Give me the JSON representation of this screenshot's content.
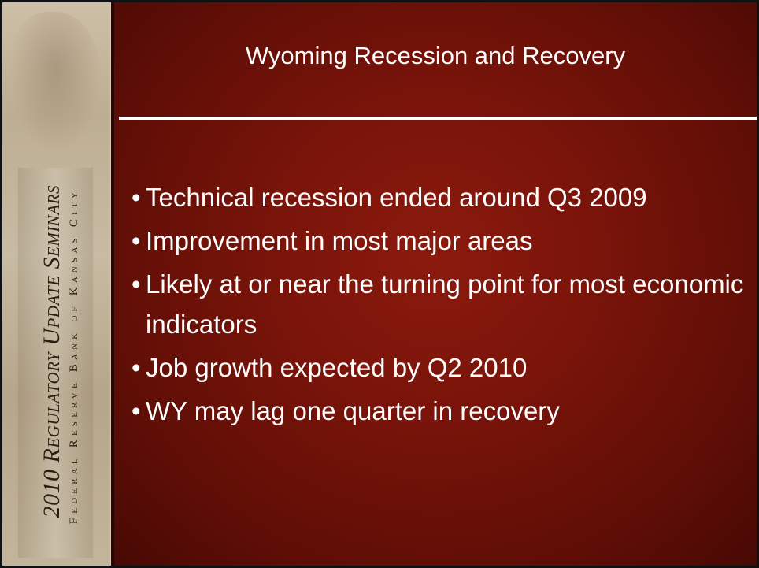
{
  "sidebar": {
    "title": "2010 Regulatory Update Seminars",
    "subtitle": "Federal Reserve Bank of Kansas City"
  },
  "slide": {
    "title": "Wyoming Recession and Recovery",
    "bullets": [
      "Technical recession ended around Q3 2009",
      "Improvement in most major areas",
      "Likely at or near the turning point for most economic indicators",
      "Job growth expected by Q2 2010",
      "WY may lag one quarter in recovery"
    ]
  }
}
